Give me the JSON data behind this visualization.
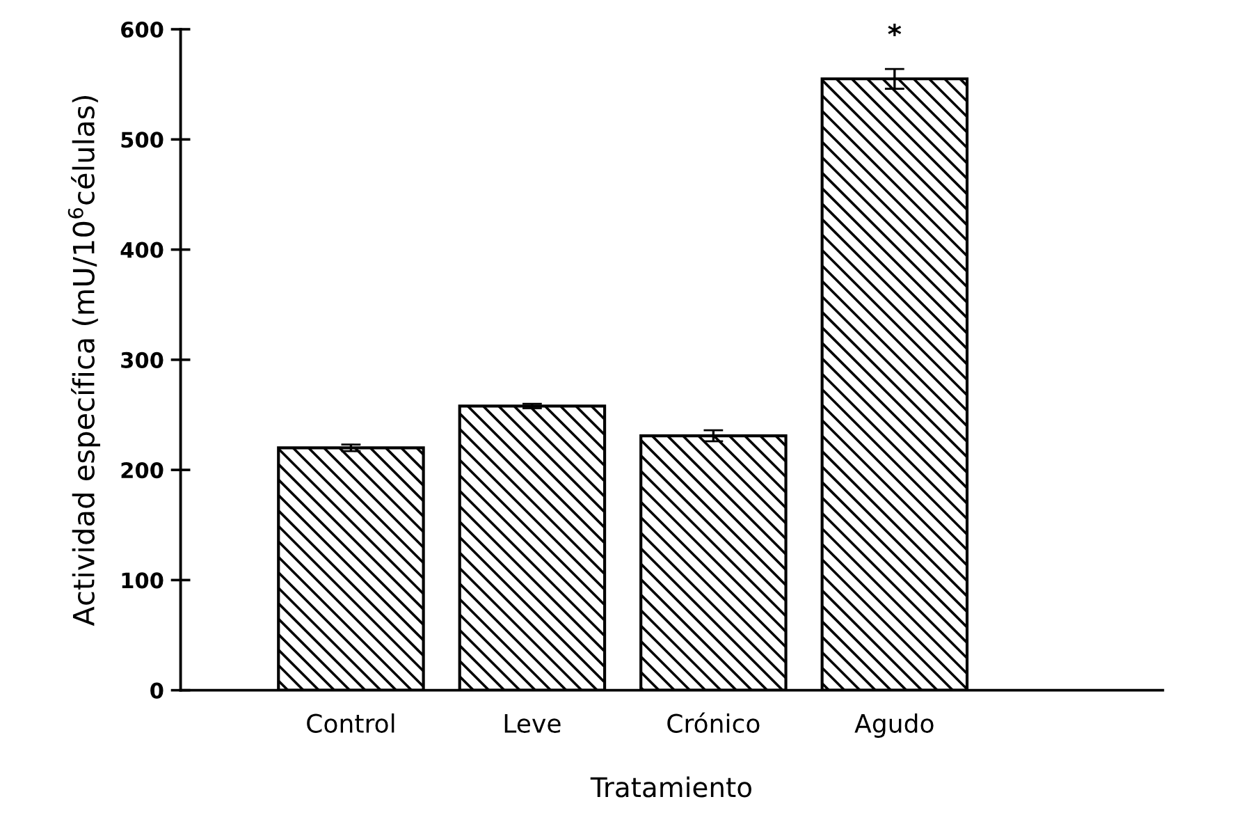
{
  "chart_data": {
    "type": "bar",
    "xlabel": "Tratamiento",
    "ylabel": "Actividad específica (mU/10$^{6}$células)",
    "categories": [
      "Control",
      "Leve",
      "Crónico",
      "Agudo"
    ],
    "values": [
      220,
      258,
      231,
      555
    ],
    "errors": [
      3,
      2,
      5,
      9
    ],
    "color": "#000000",
    "ylim": [
      0,
      600
    ],
    "yticks": [
      0,
      100,
      200,
      300,
      400,
      500,
      600
    ],
    "grid": false,
    "legend": false,
    "annotations": [
      "*"
    ]
  }
}
